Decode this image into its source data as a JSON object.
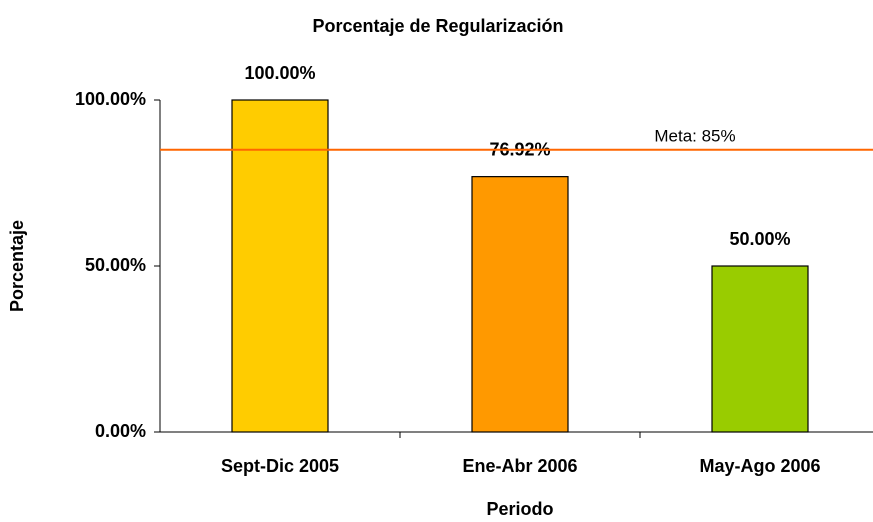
{
  "chart_data": {
    "type": "bar",
    "title": "Porcentaje de Regularización",
    "x_label": "Periodo",
    "y_label": "Porcentaje",
    "categories": [
      "Sept-Dic 2005",
      "Ene-Abr 2006",
      "May-Ago 2006"
    ],
    "values": [
      100,
      76.92,
      50
    ],
    "value_labels": [
      "100.00%",
      "76.92%",
      "50.00%"
    ],
    "colors": [
      "#ffcc00",
      "#ff9900",
      "#99cc00"
    ],
    "ylim": [
      0,
      100
    ],
    "yticks": [
      {
        "value": 0,
        "label": "0.00%"
      },
      {
        "value": 50,
        "label": "50.00%"
      },
      {
        "value": 100,
        "label": "100.00%"
      }
    ],
    "reference_line": {
      "value": 85,
      "label": "Meta: 85%",
      "color": "#ff6600"
    }
  }
}
